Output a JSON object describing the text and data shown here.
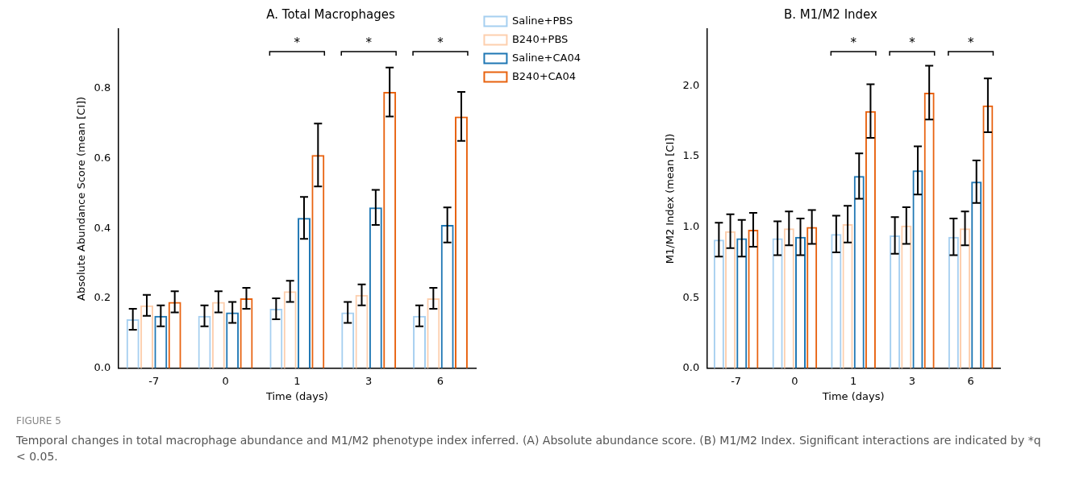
{
  "chart_data": [
    {
      "type": "bar",
      "title": "A. Total Macrophages",
      "xlabel": "Time (days)",
      "ylabel": "Absolute Abundance Score (mean [CI])",
      "categories": [
        "-7",
        "0",
        "1",
        "3",
        "6"
      ],
      "series": [
        {
          "name": "Saline+PBS",
          "color": "#a6cff0",
          "values": [
            0.14,
            0.15,
            0.17,
            0.16,
            0.15
          ],
          "errors": [
            [
              0.11,
              0.17
            ],
            [
              0.12,
              0.18
            ],
            [
              0.14,
              0.2
            ],
            [
              0.13,
              0.19
            ],
            [
              0.12,
              0.18
            ]
          ]
        },
        {
          "name": "B240+PBS",
          "color": "#fdcfae",
          "values": [
            0.18,
            0.19,
            0.22,
            0.21,
            0.2
          ],
          "errors": [
            [
              0.15,
              0.21
            ],
            [
              0.16,
              0.22
            ],
            [
              0.19,
              0.25
            ],
            [
              0.18,
              0.24
            ],
            [
              0.17,
              0.23
            ]
          ]
        },
        {
          "name": "Saline+CA04",
          "color": "#1f77b4",
          "values": [
            0.15,
            0.16,
            0.43,
            0.46,
            0.41
          ],
          "errors": [
            [
              0.12,
              0.18
            ],
            [
              0.13,
              0.19
            ],
            [
              0.37,
              0.49
            ],
            [
              0.41,
              0.51
            ],
            [
              0.36,
              0.46
            ]
          ]
        },
        {
          "name": "B240+CA04",
          "color": "#e8620f",
          "values": [
            0.19,
            0.2,
            0.61,
            0.79,
            0.72
          ],
          "errors": [
            [
              0.16,
              0.22
            ],
            [
              0.17,
              0.23
            ],
            [
              0.52,
              0.7
            ],
            [
              0.72,
              0.86
            ],
            [
              0.65,
              0.79
            ]
          ]
        }
      ],
      "ylim": [
        0,
        0.97
      ],
      "yticks": [
        {
          "value": 0,
          "label": "0.0"
        },
        0.2,
        0.4,
        0.6,
        0.8
      ],
      "grid": false,
      "legend": "right",
      "annotations": [
        "*",
        "*",
        "*",
        "FIGURE 5",
        "Temporal changes in total macrophage abundance and M1/M2 phenotype index inferred. (A) Absolute abundance score. (B) M1/M2 Index. Significant interactions are indicated by *q < 0.05."
      ]
    },
    {
      "type": "bar",
      "title": "B. M1/M2 Index",
      "xlabel": "Time (days)",
      "ylabel": "M1/M2 Index (mean [CI])",
      "categories": [
        "-7",
        "0",
        "1",
        "3",
        "6"
      ],
      "series": [
        {
          "color": "#a6cff0",
          "values": [
            0.91,
            0.92,
            0.95,
            0.94,
            0.93
          ],
          "errors": [
            [
              0.79,
              1.03
            ],
            [
              0.8,
              1.04
            ],
            [
              0.82,
              1.08
            ],
            [
              0.81,
              1.07
            ],
            [
              0.8,
              1.06
            ]
          ]
        },
        {
          "color": "#fdcfae",
          "values": [
            0.97,
            0.99,
            1.02,
            1.01,
            0.99
          ],
          "errors": [
            [
              0.85,
              1.09
            ],
            [
              0.87,
              1.11
            ],
            [
              0.89,
              1.15
            ],
            [
              0.88,
              1.14
            ],
            [
              0.87,
              1.11
            ]
          ]
        },
        {
          "color": "#1f77b4",
          "values": [
            0.92,
            0.93,
            1.36,
            1.4,
            1.32
          ],
          "errors": [
            [
              0.79,
              1.05
            ],
            [
              0.8,
              1.06
            ],
            [
              1.2,
              1.52
            ],
            [
              1.23,
              1.57
            ],
            [
              1.17,
              1.47
            ]
          ]
        },
        {
          "color": "#e8620f",
          "values": [
            0.98,
            1.0,
            1.82,
            1.95,
            1.86
          ],
          "errors": [
            [
              0.86,
              1.1
            ],
            [
              0.88,
              1.12
            ],
            [
              1.63,
              2.01
            ],
            [
              1.76,
              2.14
            ],
            [
              1.67,
              2.05
            ]
          ]
        }
      ],
      "ylim": [
        0,
        2.4
      ],
      "yticks": [
        {
          "value": 0,
          "label": "0.0"
        },
        0.5,
        {
          "value": 1,
          "label": "1.0"
        },
        1.5,
        {
          "value": 2,
          "label": "2.0"
        }
      ],
      "grid": false,
      "legend": false,
      "annotations": [
        "*",
        "*",
        "*"
      ]
    }
  ]
}
